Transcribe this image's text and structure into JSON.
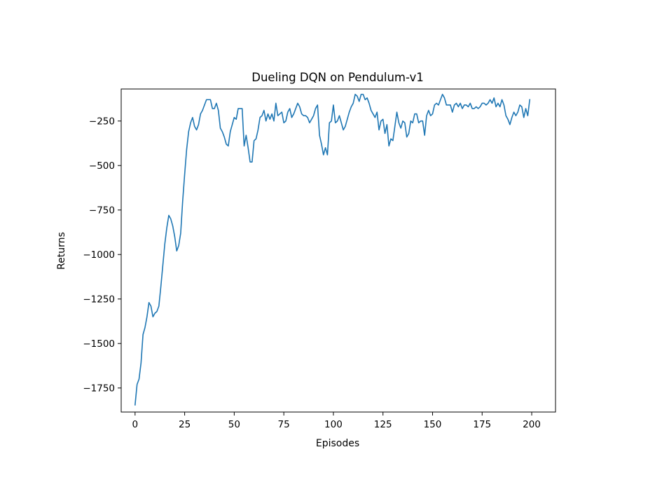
{
  "chart_data": {
    "type": "line",
    "title": "Dueling DQN on Pendulum-v1",
    "xlabel": "Episodes",
    "ylabel": "Returns",
    "xlim": [
      -7,
      212
    ],
    "ylim": [
      -1885,
      -70
    ],
    "xticks": [
      0,
      25,
      50,
      75,
      100,
      125,
      150,
      175,
      200
    ],
    "xtick_labels": [
      "0",
      "25",
      "50",
      "75",
      "100",
      "125",
      "150",
      "175",
      "200"
    ],
    "yticks": [
      -1750,
      -1500,
      -1250,
      -1000,
      -750,
      -500,
      -250
    ],
    "ytick_labels": [
      "−1750",
      "−1500",
      "−1250",
      "−1000",
      "−750",
      "−500",
      "−250"
    ],
    "grid": false,
    "line_color": "#1f77b4",
    "series": [
      {
        "values": [
          [
            0,
            -1845
          ],
          [
            1,
            -1730
          ],
          [
            2,
            -1700
          ],
          [
            3,
            -1610
          ],
          [
            4,
            -1450
          ],
          [
            5,
            -1410
          ],
          [
            6,
            -1350
          ],
          [
            7,
            -1270
          ],
          [
            8,
            -1290
          ],
          [
            9,
            -1350
          ],
          [
            10,
            -1330
          ],
          [
            11,
            -1320
          ],
          [
            12,
            -1290
          ],
          [
            13,
            -1180
          ],
          [
            14,
            -1060
          ],
          [
            15,
            -940
          ],
          [
            16,
            -850
          ],
          [
            17,
            -780
          ],
          [
            18,
            -800
          ],
          [
            19,
            -840
          ],
          [
            20,
            -900
          ],
          [
            21,
            -980
          ],
          [
            22,
            -950
          ],
          [
            23,
            -880
          ],
          [
            24,
            -700
          ],
          [
            25,
            -550
          ],
          [
            26,
            -410
          ],
          [
            27,
            -310
          ],
          [
            28,
            -260
          ],
          [
            29,
            -230
          ],
          [
            30,
            -280
          ],
          [
            31,
            -300
          ],
          [
            32,
            -270
          ],
          [
            33,
            -210
          ],
          [
            34,
            -190
          ],
          [
            35,
            -160
          ],
          [
            36,
            -130
          ],
          [
            37,
            -130
          ],
          [
            38,
            -130
          ],
          [
            39,
            -180
          ],
          [
            40,
            -180
          ],
          [
            41,
            -150
          ],
          [
            42,
            -190
          ],
          [
            43,
            -290
          ],
          [
            44,
            -310
          ],
          [
            45,
            -340
          ],
          [
            46,
            -380
          ],
          [
            47,
            -390
          ],
          [
            48,
            -310
          ],
          [
            49,
            -270
          ],
          [
            50,
            -230
          ],
          [
            51,
            -240
          ],
          [
            52,
            -180
          ],
          [
            53,
            -180
          ],
          [
            54,
            -180
          ],
          [
            55,
            -390
          ],
          [
            56,
            -330
          ],
          [
            57,
            -400
          ],
          [
            58,
            -480
          ],
          [
            59,
            -480
          ],
          [
            60,
            -360
          ],
          [
            61,
            -350
          ],
          [
            62,
            -300
          ],
          [
            63,
            -230
          ],
          [
            64,
            -220
          ],
          [
            65,
            -190
          ],
          [
            66,
            -250
          ],
          [
            67,
            -210
          ],
          [
            68,
            -240
          ],
          [
            69,
            -210
          ],
          [
            70,
            -250
          ],
          [
            71,
            -150
          ],
          [
            72,
            -220
          ],
          [
            73,
            -210
          ],
          [
            74,
            -200
          ],
          [
            75,
            -260
          ],
          [
            76,
            -250
          ],
          [
            77,
            -200
          ],
          [
            78,
            -180
          ],
          [
            79,
            -230
          ],
          [
            80,
            -210
          ],
          [
            81,
            -180
          ],
          [
            82,
            -150
          ],
          [
            83,
            -170
          ],
          [
            84,
            -210
          ],
          [
            85,
            -220
          ],
          [
            86,
            -220
          ],
          [
            87,
            -230
          ],
          [
            88,
            -260
          ],
          [
            89,
            -240
          ],
          [
            90,
            -220
          ],
          [
            91,
            -180
          ],
          [
            92,
            -160
          ],
          [
            93,
            -330
          ],
          [
            94,
            -380
          ],
          [
            95,
            -440
          ],
          [
            96,
            -400
          ],
          [
            97,
            -440
          ],
          [
            98,
            -260
          ],
          [
            99,
            -250
          ],
          [
            100,
            -160
          ],
          [
            101,
            -260
          ],
          [
            102,
            -250
          ],
          [
            103,
            -220
          ],
          [
            104,
            -260
          ],
          [
            105,
            -300
          ],
          [
            106,
            -280
          ],
          [
            107,
            -240
          ],
          [
            108,
            -200
          ],
          [
            109,
            -170
          ],
          [
            110,
            -150
          ],
          [
            111,
            -100
          ],
          [
            112,
            -110
          ],
          [
            113,
            -140
          ],
          [
            114,
            -100
          ],
          [
            115,
            -100
          ],
          [
            116,
            -130
          ],
          [
            117,
            -120
          ],
          [
            118,
            -150
          ],
          [
            119,
            -190
          ],
          [
            120,
            -210
          ],
          [
            121,
            -230
          ],
          [
            122,
            -200
          ],
          [
            123,
            -300
          ],
          [
            124,
            -250
          ],
          [
            125,
            -240
          ],
          [
            126,
            -320
          ],
          [
            127,
            -270
          ],
          [
            128,
            -390
          ],
          [
            129,
            -350
          ],
          [
            130,
            -360
          ],
          [
            131,
            -280
          ],
          [
            132,
            -200
          ],
          [
            133,
            -260
          ],
          [
            134,
            -290
          ],
          [
            135,
            -250
          ],
          [
            136,
            -260
          ],
          [
            137,
            -340
          ],
          [
            138,
            -320
          ],
          [
            139,
            -250
          ],
          [
            140,
            -260
          ],
          [
            141,
            -210
          ],
          [
            142,
            -210
          ],
          [
            143,
            -260
          ],
          [
            144,
            -250
          ],
          [
            145,
            -250
          ],
          [
            146,
            -330
          ],
          [
            147,
            -220
          ],
          [
            148,
            -190
          ],
          [
            149,
            -220
          ],
          [
            150,
            -210
          ],
          [
            151,
            -160
          ],
          [
            152,
            -150
          ],
          [
            153,
            -160
          ],
          [
            154,
            -130
          ],
          [
            155,
            -100
          ],
          [
            156,
            -120
          ],
          [
            157,
            -160
          ],
          [
            158,
            -160
          ],
          [
            159,
            -160
          ],
          [
            160,
            -200
          ],
          [
            161,
            -160
          ],
          [
            162,
            -150
          ],
          [
            163,
            -170
          ],
          [
            164,
            -150
          ],
          [
            165,
            -180
          ],
          [
            166,
            -160
          ],
          [
            167,
            -160
          ],
          [
            168,
            -170
          ],
          [
            169,
            -150
          ],
          [
            170,
            -180
          ],
          [
            171,
            -180
          ],
          [
            172,
            -170
          ],
          [
            173,
            -180
          ],
          [
            174,
            -170
          ],
          [
            175,
            -150
          ],
          [
            176,
            -150
          ],
          [
            177,
            -160
          ],
          [
            178,
            -150
          ],
          [
            179,
            -130
          ],
          [
            180,
            -150
          ],
          [
            181,
            -120
          ],
          [
            182,
            -170
          ],
          [
            183,
            -150
          ],
          [
            184,
            -170
          ],
          [
            185,
            -130
          ],
          [
            186,
            -160
          ],
          [
            187,
            -220
          ],
          [
            188,
            -240
          ],
          [
            189,
            -270
          ],
          [
            190,
            -230
          ],
          [
            191,
            -200
          ],
          [
            192,
            -220
          ],
          [
            193,
            -200
          ],
          [
            194,
            -160
          ],
          [
            195,
            -170
          ],
          [
            196,
            -230
          ],
          [
            197,
            -180
          ],
          [
            198,
            -220
          ],
          [
            199,
            -130
          ]
        ]
      }
    ]
  }
}
